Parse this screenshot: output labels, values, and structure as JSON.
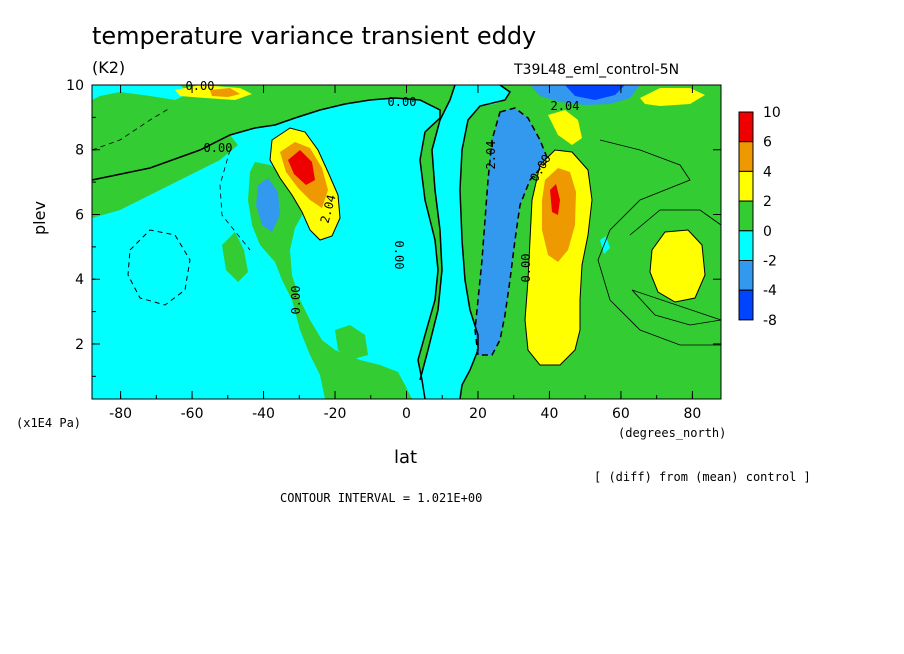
{
  "chart_data": {
    "type": "heatmap",
    "title": "temperature variance transient eddy",
    "units_label": "(K2)",
    "run_label": "T39L48_eml_control-5N",
    "xlabel": "lat",
    "ylabel": "plev",
    "x_units": "(degrees_north)",
    "y_units": "(x1E4 Pa)",
    "xlim": [
      -88,
      88
    ],
    "ylim": [
      10,
      0.3
    ],
    "x_ticks": [
      -80,
      -60,
      -40,
      -20,
      0,
      20,
      40,
      60,
      80
    ],
    "y_ticks": [
      2,
      4,
      6,
      8,
      10
    ],
    "colorbar_levels": [
      10,
      6,
      4,
      2,
      0,
      -2,
      -4,
      -8
    ],
    "colorbar_colors": [
      "#ee0000",
      "#ee9900",
      "#ffff00",
      "#33cc33",
      "#00ffff",
      "#3399ee",
      "#0044ff"
    ],
    "contour_labels": [
      "0.00",
      "0.00",
      "0.00",
      "0.00",
      "2.04",
      "0.00",
      "0.00",
      "2.04",
      "0.00",
      "2.04"
    ],
    "subtitle": "[ (diff) from (mean) control ]",
    "contour_interval": "CONTOUR INTERVAL = 1.021E+00",
    "colors": {
      "green": "#33cc33",
      "cyan": "#00ffff",
      "yellow": "#ffff00",
      "orange": "#ee9900",
      "red": "#ee0000",
      "lightblue": "#3399ee",
      "blue": "#0044ff"
    }
  }
}
